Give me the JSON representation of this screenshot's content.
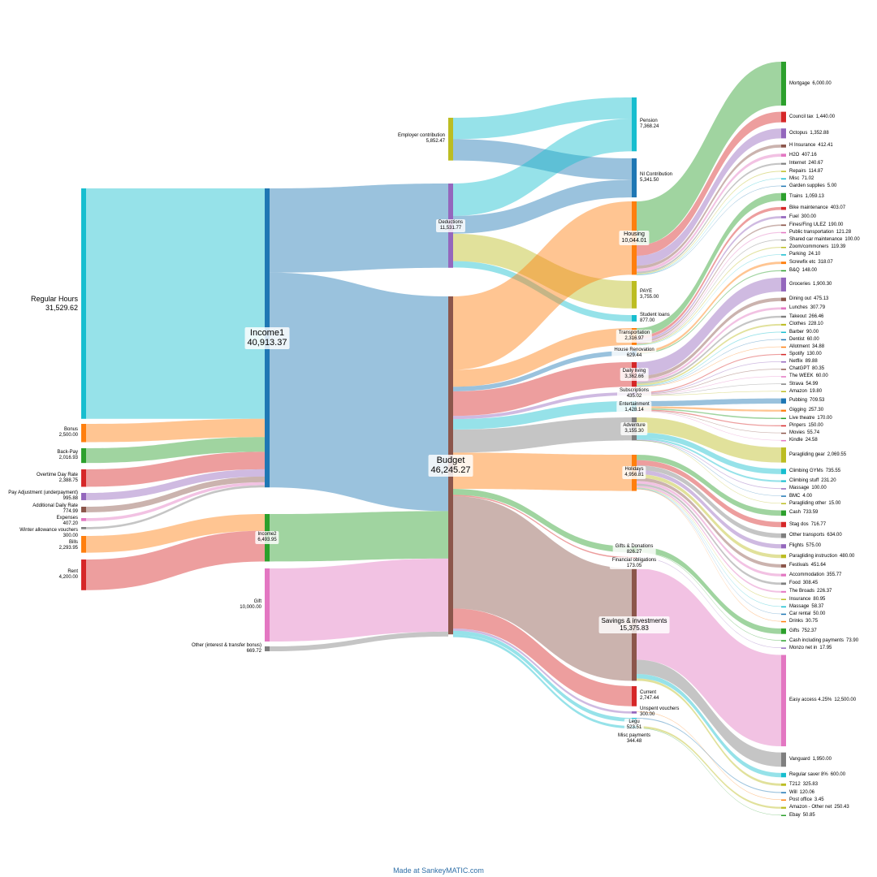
{
  "footer": "Made at SankeyMATIC.com",
  "chart_data": {
    "type": "sankey",
    "nodes": [
      {
        "id": "Regular Hours",
        "value": 31529.62,
        "color": "#17becf",
        "col": 0
      },
      {
        "id": "Bonus",
        "value": 2500.0,
        "color": "#ff7f0e",
        "col": 0
      },
      {
        "id": "Back-Pay",
        "value": 2016.93,
        "color": "#2ca02c",
        "col": 0
      },
      {
        "id": "Overtime Day Rate",
        "value": 2388.75,
        "color": "#d62728",
        "col": 0
      },
      {
        "id": "Pay Adjustment (underpayment)",
        "value": 995.88,
        "color": "#9467bd",
        "col": 0
      },
      {
        "id": "Additional Daily Rate",
        "value": 774.99,
        "color": "#8c564b",
        "col": 0
      },
      {
        "id": "Expenses",
        "value": 407.2,
        "color": "#e377c2",
        "col": 0
      },
      {
        "id": "Winter allowance vouchers",
        "value": 300.0,
        "color": "#7f7f7f",
        "col": 0
      },
      {
        "id": "Bills",
        "value": 2293.95,
        "color": "#ff7f0e",
        "col": 0
      },
      {
        "id": "Rent",
        "value": 4200.0,
        "color": "#d62728",
        "col": 0
      },
      {
        "id": "Income1",
        "value": 40913.37,
        "color": "#1f77b4",
        "col": 1
      },
      {
        "id": "Income2",
        "value": 6493.95,
        "color": "#2ca02c",
        "col": 1
      },
      {
        "id": "Gift",
        "value": 10000.0,
        "color": "#e377c2",
        "col": 1
      },
      {
        "id": "Other (interest & transfer bonus)",
        "value": 669.72,
        "color": "#7f7f7f",
        "col": 1
      },
      {
        "id": "Employer contribution",
        "value": 5852.47,
        "color": "#bcbd22",
        "col": 2
      },
      {
        "id": "Deductions",
        "value": 11531.77,
        "color": "#9467bd",
        "col": 2
      },
      {
        "id": "Budget",
        "value": 46245.27,
        "color": "#8c564b",
        "col": 2
      },
      {
        "id": "Pension",
        "value": 7368.24,
        "color": "#17becf",
        "col": 3
      },
      {
        "id": "NI Contribution",
        "value": 5341.5,
        "color": "#1f77b4",
        "col": 3
      },
      {
        "id": "Housing",
        "value": 10044.01,
        "color": "#ff7f0e",
        "col": 3
      },
      {
        "id": "PAYE",
        "value": 3755.0,
        "color": "#bcbd22",
        "col": 3
      },
      {
        "id": "Student loans",
        "value": 877.0,
        "color": "#17becf",
        "col": 3
      },
      {
        "id": "Transportation",
        "value": 2316.97,
        "color": "#ff7f0e",
        "col": 3
      },
      {
        "id": "House Renovation",
        "value": 629.44,
        "color": "#1f77b4",
        "col": 3
      },
      {
        "id": "Daily living",
        "value": 3362.66,
        "color": "#d62728",
        "col": 3
      },
      {
        "id": "Subscriptions",
        "value": 435.02,
        "color": "#9467bd",
        "col": 3
      },
      {
        "id": "Entertainment",
        "value": 1428.14,
        "color": "#17becf",
        "col": 3
      },
      {
        "id": "Adventure",
        "value": 3155.3,
        "color": "#7f7f7f",
        "col": 3
      },
      {
        "id": "Holidays",
        "value": 4956.81,
        "color": "#ff7f0e",
        "col": 3
      },
      {
        "id": "Gifts & Donations",
        "value": 826.27,
        "color": "#2ca02c",
        "col": 3
      },
      {
        "id": "Financial obligations",
        "value": 173.05,
        "color": "#d62728",
        "col": 3
      },
      {
        "id": "Savings & investments",
        "value": 15375.83,
        "color": "#8c564b",
        "col": 3
      },
      {
        "id": "Current",
        "value": 2747.44,
        "color": "#d62728",
        "col": 3
      },
      {
        "id": "Unspent vouchers",
        "value": 300.0,
        "color": "#9467bd",
        "col": 3
      },
      {
        "id": "Legu",
        "value": 523.51,
        "color": "#17becf",
        "col": 3
      },
      {
        "id": "Misc payments",
        "value": 344.48,
        "color": "#17becf",
        "col": 3
      }
    ],
    "flows": [
      {
        "from": "Regular Hours",
        "to": "Income1",
        "value": 31529.62
      },
      {
        "from": "Bonus",
        "to": "Income1",
        "value": 2500.0
      },
      {
        "from": "Back-Pay",
        "to": "Income1",
        "value": 2016.93
      },
      {
        "from": "Overtime Day Rate",
        "to": "Income1",
        "value": 2388.75
      },
      {
        "from": "Pay Adjustment (underpayment)",
        "to": "Income1",
        "value": 995.88
      },
      {
        "from": "Additional Daily Rate",
        "to": "Income1",
        "value": 774.99
      },
      {
        "from": "Expenses",
        "to": "Income1",
        "value": 407.2
      },
      {
        "from": "Winter allowance vouchers",
        "to": "Income1",
        "value": 300.0
      },
      {
        "from": "Bills",
        "to": "Income2",
        "value": 2293.95
      },
      {
        "from": "Rent",
        "to": "Income2",
        "value": 4200.0
      },
      {
        "from": "Income1",
        "to": "Deductions",
        "value": 11531.77
      },
      {
        "from": "Income1",
        "to": "Budget",
        "value": 29381.6
      },
      {
        "from": "Income2",
        "to": "Budget",
        "value": 6493.95
      },
      {
        "from": "Gift",
        "to": "Budget",
        "value": 10000.0
      },
      {
        "from": "Other (interest & transfer bonus)",
        "to": "Budget",
        "value": 669.72
      },
      {
        "from": "Employer contribution",
        "to": "Pension",
        "value": 2926.0
      },
      {
        "from": "Employer contribution",
        "to": "NI Contribution",
        "value": 2926.47
      },
      {
        "from": "Deductions",
        "to": "Pension",
        "value": 4442.24
      },
      {
        "from": "Deductions",
        "to": "NI Contribution",
        "value": 2415.03
      },
      {
        "from": "Deductions",
        "to": "PAYE",
        "value": 3755.0
      },
      {
        "from": "Deductions",
        "to": "Student loans",
        "value": 877.0
      },
      {
        "from": "Budget",
        "to": "Housing",
        "value": 10044.01
      },
      {
        "from": "Budget",
        "to": "Transportation",
        "value": 2316.97
      },
      {
        "from": "Budget",
        "to": "House Renovation",
        "value": 629.44
      },
      {
        "from": "Budget",
        "to": "Daily living",
        "value": 3362.66
      },
      {
        "from": "Budget",
        "to": "Subscriptions",
        "value": 435.02
      },
      {
        "from": "Budget",
        "to": "Entertainment",
        "value": 1428.14
      },
      {
        "from": "Budget",
        "to": "Adventure",
        "value": 3155.3
      },
      {
        "from": "Budget",
        "to": "Holidays",
        "value": 4956.81
      },
      {
        "from": "Budget",
        "to": "Gifts & Donations",
        "value": 826.27
      },
      {
        "from": "Budget",
        "to": "Financial obligations",
        "value": 173.05
      },
      {
        "from": "Budget",
        "to": "Savings & investments",
        "value": 15375.83
      },
      {
        "from": "Budget",
        "to": "Current",
        "value": 2747.44
      },
      {
        "from": "Budget",
        "to": "Unspent vouchers",
        "value": 300.0
      },
      {
        "from": "Budget",
        "to": "Legu",
        "value": 523.51
      },
      {
        "from": "Budget",
        "to": "Misc payments",
        "value": 344.48
      }
    ],
    "leaves": [
      {
        "parent": "Housing",
        "label": "Mortgage",
        "value": 6000.0,
        "color": "#2ca02c"
      },
      {
        "parent": "Housing",
        "label": "Council tax",
        "value": 1440.0,
        "color": "#d62728"
      },
      {
        "parent": "Housing",
        "label": "Octopus",
        "value": 1352.88,
        "color": "#9467bd"
      },
      {
        "parent": "Housing",
        "label": "H Insurance",
        "value": 412.41,
        "color": "#8c564b"
      },
      {
        "parent": "Housing",
        "label": "H2O",
        "value": 407.16,
        "color": "#e377c2"
      },
      {
        "parent": "Housing",
        "label": "Internet",
        "value": 240.67,
        "color": "#7f7f7f"
      },
      {
        "parent": "Housing",
        "label": "Repairs",
        "value": 114.87,
        "color": "#bcbd22"
      },
      {
        "parent": "Housing",
        "label": "Misc",
        "value": 71.02,
        "color": "#17becf"
      },
      {
        "parent": "Housing",
        "label": "Garden supplies",
        "value": 5.0,
        "color": "#1f77b4"
      },
      {
        "parent": "Transportation",
        "label": "Trains",
        "value": 1059.13,
        "color": "#2ca02c"
      },
      {
        "parent": "Transportation",
        "label": "Bike maintenance",
        "value": 403.07,
        "color": "#d62728"
      },
      {
        "parent": "Transportation",
        "label": "Fuel",
        "value": 300.0,
        "color": "#9467bd"
      },
      {
        "parent": "Transportation",
        "label": "Fines/Fing ULEZ",
        "value": 190.0,
        "color": "#8c564b"
      },
      {
        "parent": "Transportation",
        "label": "Public transportation",
        "value": 121.28,
        "color": "#e377c2"
      },
      {
        "parent": "Transportation",
        "label": "Shared car maintenance",
        "value": 100.0,
        "color": "#7f7f7f"
      },
      {
        "parent": "Transportation",
        "label": "Zoom/commoners",
        "value": 119.39,
        "color": "#bcbd22"
      },
      {
        "parent": "Transportation",
        "label": "Parking",
        "value": 24.1,
        "color": "#17becf"
      },
      {
        "parent": "House Renovation",
        "label": "Screwfix etc",
        "value": 318.07,
        "color": "#ff7f0e"
      },
      {
        "parent": "House Renovation",
        "label": "B&Q",
        "value": 148.0,
        "color": "#2ca02c"
      },
      {
        "parent": "Daily living",
        "label": "Groceries",
        "value": 1900.3,
        "color": "#9467bd"
      },
      {
        "parent": "Daily living",
        "label": "Dining out",
        "value": 475.13,
        "color": "#8c564b"
      },
      {
        "parent": "Daily living",
        "label": "Lunches",
        "value": 307.79,
        "color": "#e377c2"
      },
      {
        "parent": "Daily living",
        "label": "Takeout",
        "value": 266.46,
        "color": "#7f7f7f"
      },
      {
        "parent": "Daily living",
        "label": "Clothes",
        "value": 228.1,
        "color": "#bcbd22"
      },
      {
        "parent": "Daily living",
        "label": "Barber",
        "value": 90.0,
        "color": "#17becf"
      },
      {
        "parent": "Daily living",
        "label": "Dentist",
        "value": 60.0,
        "color": "#1f77b4"
      },
      {
        "parent": "Daily living",
        "label": "Allotment",
        "value": 34.88,
        "color": "#ff7f0e"
      },
      {
        "parent": "Subscriptions",
        "label": "Spotify",
        "value": 130.0,
        "color": "#d62728"
      },
      {
        "parent": "Subscriptions",
        "label": "Netflix",
        "value": 89.88,
        "color": "#9467bd"
      },
      {
        "parent": "Subscriptions",
        "label": "ChatGPT",
        "value": 80.35,
        "color": "#8c564b"
      },
      {
        "parent": "Subscriptions",
        "label": "The WEEK",
        "value": 60.0,
        "color": "#e377c2"
      },
      {
        "parent": "Subscriptions",
        "label": "Strava",
        "value": 54.99,
        "color": "#7f7f7f"
      },
      {
        "parent": "Subscriptions",
        "label": "Amazon",
        "value": 19.8,
        "color": "#bcbd22"
      },
      {
        "parent": "Entertainment",
        "label": "Pubbing",
        "value": 709.53,
        "color": "#1f77b4"
      },
      {
        "parent": "Entertainment",
        "label": "Gigging",
        "value": 257.3,
        "color": "#ff7f0e"
      },
      {
        "parent": "Entertainment",
        "label": "Live theatre",
        "value": 170.0,
        "color": "#2ca02c"
      },
      {
        "parent": "Entertainment",
        "label": "Pinpers",
        "value": 150.0,
        "color": "#d62728"
      },
      {
        "parent": "Entertainment",
        "label": "Movies",
        "value": 55.74,
        "color": "#8c564b"
      },
      {
        "parent": "Entertainment",
        "label": "Kindle",
        "value": 24.58,
        "color": "#e377c2"
      },
      {
        "parent": "Adventure",
        "label": "Paragliding gear",
        "value": 2069.55,
        "color": "#bcbd22"
      },
      {
        "parent": "Adventure",
        "label": "Climbing GYMs",
        "value": 735.55,
        "color": "#17becf"
      },
      {
        "parent": "Adventure",
        "label": "Climbing stuff",
        "value": 231.2,
        "color": "#17becf"
      },
      {
        "parent": "Adventure",
        "label": "Massage",
        "value": 100.0,
        "color": "#9467bd"
      },
      {
        "parent": "Adventure",
        "label": "BMC",
        "value": 4.0,
        "color": "#1f77b4"
      },
      {
        "parent": "Adventure",
        "label": "Paragliding other",
        "value": 15.0,
        "color": "#bcbd22"
      },
      {
        "parent": "Holidays",
        "label": "Cash",
        "value": 733.59,
        "color": "#2ca02c"
      },
      {
        "parent": "Holidays",
        "label": "Stag dos",
        "value": 716.77,
        "color": "#d62728"
      },
      {
        "parent": "Holidays",
        "label": "Other transports",
        "value": 634.0,
        "color": "#7f7f7f"
      },
      {
        "parent": "Holidays",
        "label": "Flights",
        "value": 575.0,
        "color": "#9467bd"
      },
      {
        "parent": "Holidays",
        "label": "Paragliding instruction",
        "value": 480.0,
        "color": "#bcbd22"
      },
      {
        "parent": "Holidays",
        "label": "Festivals",
        "value": 451.64,
        "color": "#8c564b"
      },
      {
        "parent": "Holidays",
        "label": "Accommodation",
        "value": 355.77,
        "color": "#e377c2"
      },
      {
        "parent": "Holidays",
        "label": "Food",
        "value": 308.45,
        "color": "#7f7f7f"
      },
      {
        "parent": "Holidays",
        "label": "The Broads",
        "value": 226.37,
        "color": "#e377c2"
      },
      {
        "parent": "Holidays",
        "label": "Insurance",
        "value": 80.95,
        "color": "#bcbd22"
      },
      {
        "parent": "Holidays",
        "label": "Massage",
        "value": 58.37,
        "color": "#17becf"
      },
      {
        "parent": "Holidays",
        "label": "Car rental",
        "value": 50.0,
        "color": "#1f77b4"
      },
      {
        "parent": "Holidays",
        "label": "Drinks",
        "value": 30.75,
        "color": "#ff7f0e"
      },
      {
        "parent": "Gifts & Donations",
        "label": "Gifts",
        "value": 752.37,
        "color": "#2ca02c"
      },
      {
        "parent": "Gifts & Donations",
        "label": "Cash including payments",
        "value": 73.9,
        "color": "#2ca02c"
      },
      {
        "parent": "Financial obligations",
        "label": "Monzo net in",
        "value": 17.95,
        "color": "#9467bd"
      },
      {
        "parent": "Savings & investments",
        "label": "Easy access 4.25%",
        "value": 12500.0,
        "color": "#e377c2"
      },
      {
        "parent": "Savings & investments",
        "label": "Vanguard",
        "value": 1950.0,
        "color": "#7f7f7f"
      },
      {
        "parent": "Savings & investments",
        "label": "Regular saver 8%",
        "value": 600.0,
        "color": "#17becf"
      },
      {
        "parent": "Savings & investments",
        "label": "T212",
        "value": 325.83,
        "color": "#bcbd22"
      },
      {
        "parent": "Legu",
        "label": "Will",
        "value": 120.06,
        "color": "#1f77b4"
      },
      {
        "parent": "Unspent vouchers",
        "label": "Post office",
        "value": 3.45,
        "color": "#ff7f0e"
      },
      {
        "parent": "Misc payments",
        "label": "Amazon - Other net",
        "value": 250.43,
        "color": "#bcbd22"
      },
      {
        "parent": "Misc payments",
        "label": "Ebay",
        "value": 50.85,
        "color": "#2ca02c"
      }
    ]
  }
}
